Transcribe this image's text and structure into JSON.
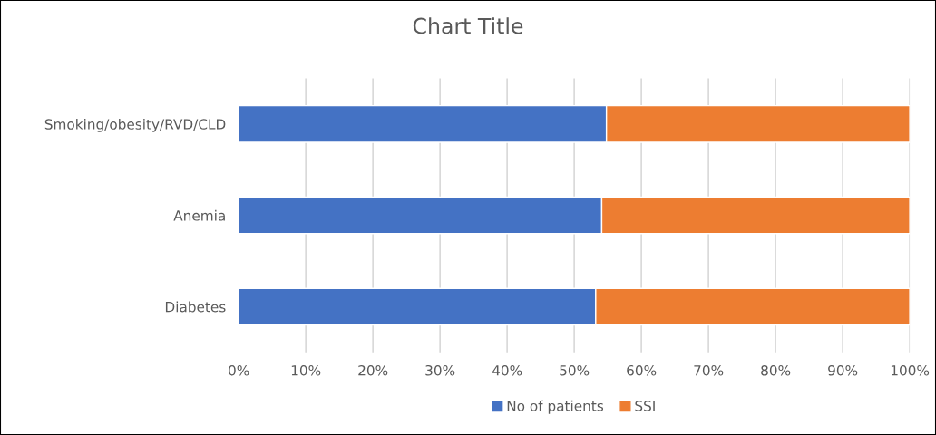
{
  "chart_data": {
    "type": "bar",
    "title": "Chart Title",
    "orientation": "horizontal",
    "stacked": true,
    "categories": [
      "Smoking/obesity/RVD/CLD",
      "Anemia",
      "Diabetes"
    ],
    "series": [
      {
        "name": "No of patients",
        "color": "#4472c4",
        "values": [
          54.8,
          54.1,
          53.2
        ]
      },
      {
        "name": "SSI",
        "color": "#ed7d31",
        "values": [
          45.2,
          45.9,
          46.8
        ]
      }
    ],
    "xlim": [
      0,
      100
    ],
    "xticks": [
      {
        "value": 0,
        "label": "0%"
      },
      {
        "value": 10,
        "label": "10%"
      },
      {
        "value": 20,
        "label": "20%"
      },
      {
        "value": 30,
        "label": "30%"
      },
      {
        "value": 40,
        "label": "40%"
      },
      {
        "value": 50,
        "label": "50%"
      },
      {
        "value": 60,
        "label": "60%"
      },
      {
        "value": 70,
        "label": "70%"
      },
      {
        "value": 80,
        "label": "80%"
      },
      {
        "value": 90,
        "label": "90%"
      },
      {
        "value": 100,
        "label": "100%"
      }
    ],
    "grid": "x",
    "legend": "bottom"
  }
}
